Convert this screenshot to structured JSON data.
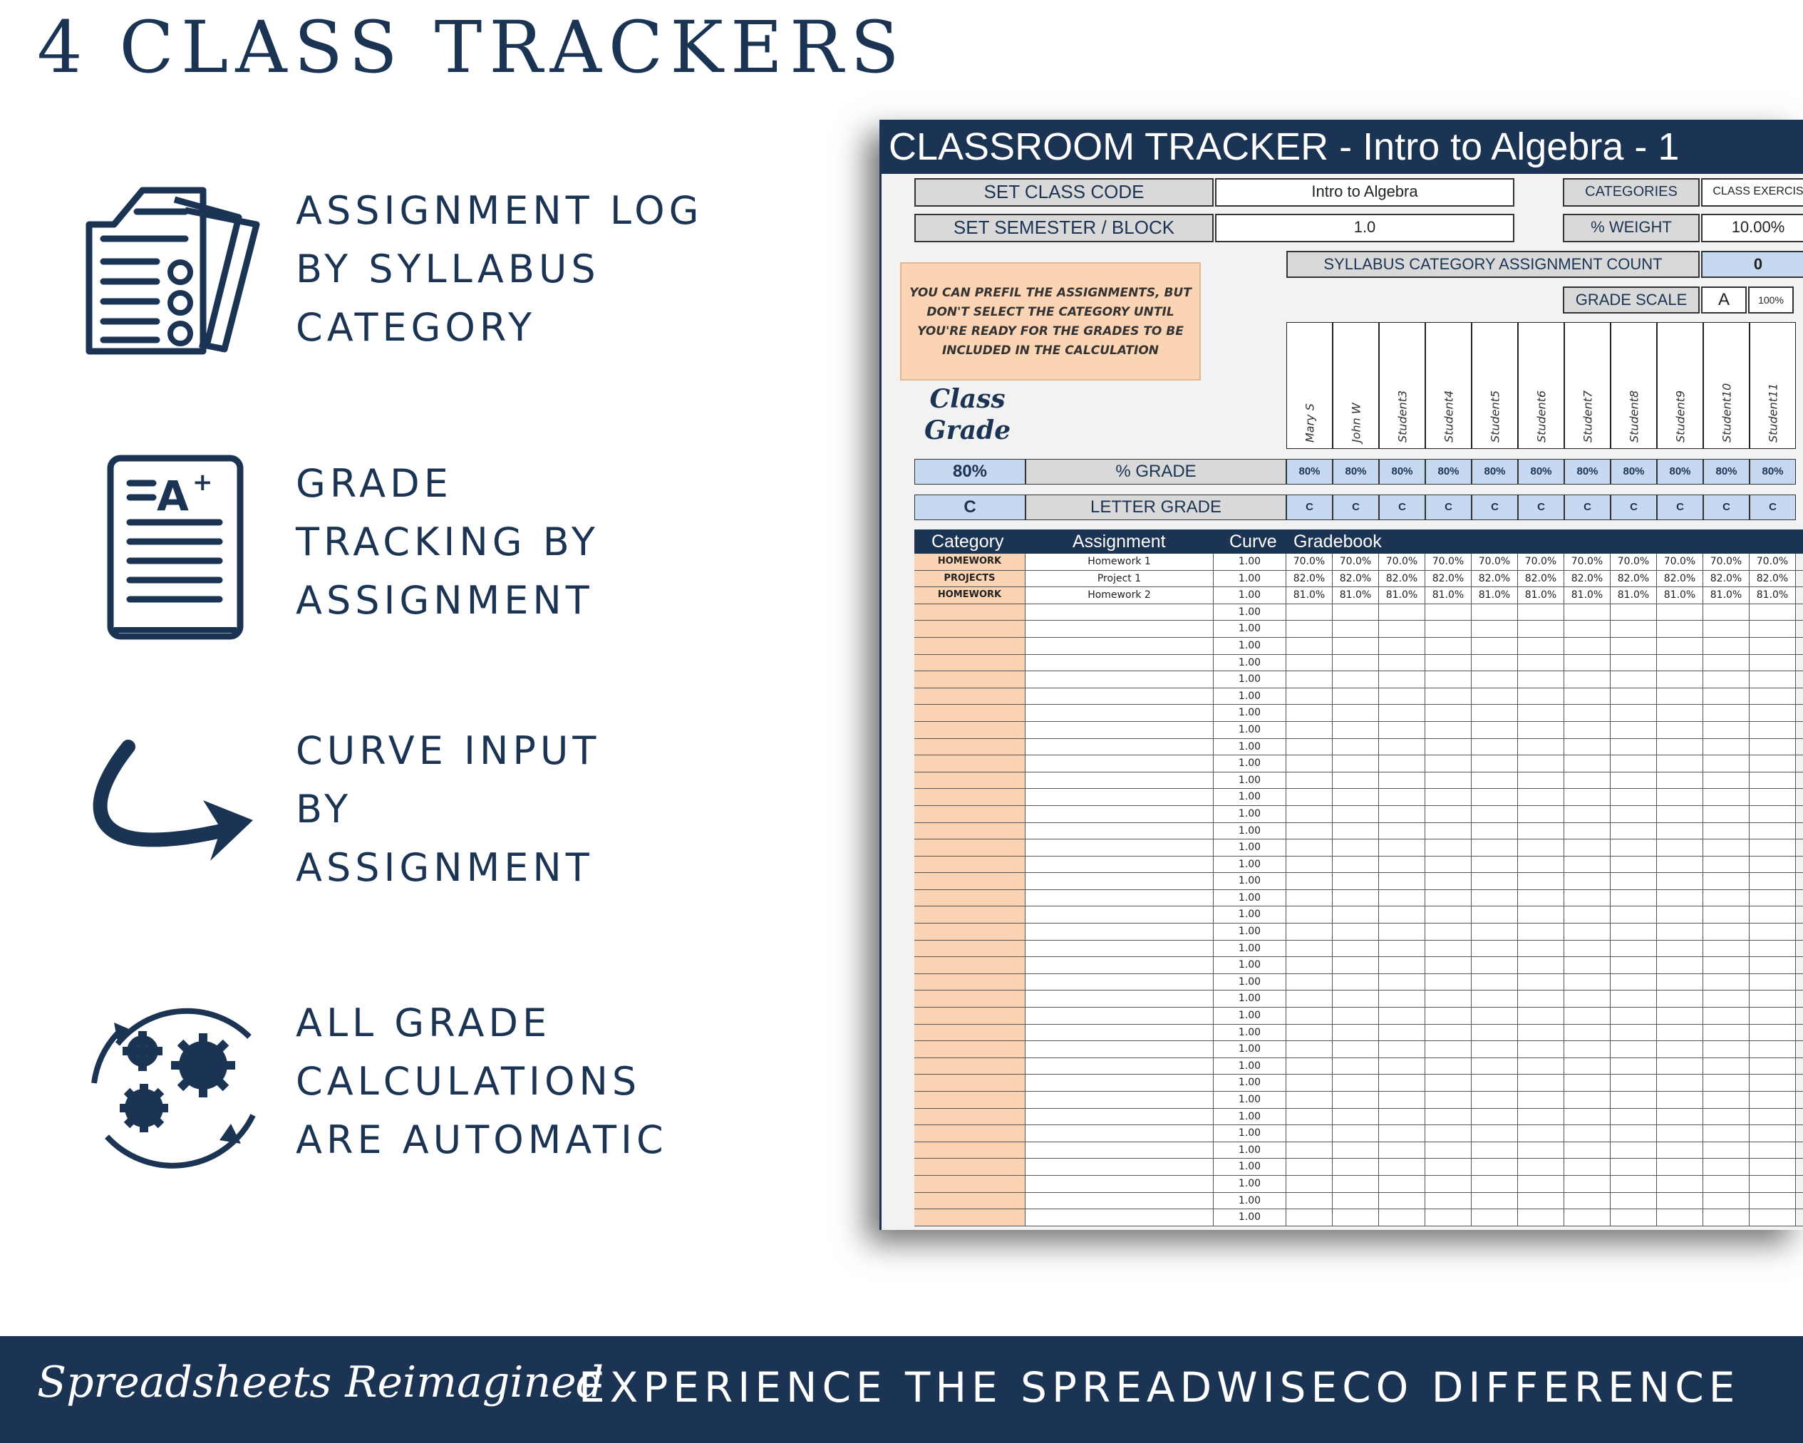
{
  "headline": "4 CLASS TRACKERS",
  "features": [
    {
      "icon": "document-list-icon",
      "lines": [
        "ASSIGNMENT LOG",
        "BY SYLLABUS",
        "CATEGORY"
      ]
    },
    {
      "icon": "graded-paper-icon",
      "lines": [
        "GRADE",
        "TRACKING BY",
        "ASSIGNMENT"
      ]
    },
    {
      "icon": "curved-arrow-icon",
      "lines": [
        "CURVE INPUT",
        "BY",
        "ASSIGNMENT"
      ]
    },
    {
      "icon": "gears-cycle-icon",
      "lines": [
        "ALL GRADE",
        "CALCULATIONS",
        "ARE AUTOMATIC"
      ]
    }
  ],
  "sheet": {
    "title": "CLASSROOM TRACKER - Intro to Algebra - 1",
    "set_class_code_label": "SET CLASS CODE",
    "class_code_value": "Intro to Algebra",
    "set_semester_label": "SET SEMESTER / BLOCK",
    "semester_value": "1.0",
    "categories_label": "CATEGORIES",
    "categories_value": "CLASS EXERCIS",
    "weight_label": "% WEIGHT",
    "weight_value": "10.00%",
    "syllabus_count_label": "SYLLABUS CATEGORY ASSIGNMENT COUNT",
    "syllabus_count_value": "0",
    "grade_scale_label": "GRADE SCALE",
    "grade_scale_letter": "A",
    "grade_scale_pct": "100%",
    "note_lines": [
      "YOU CAN PREFIL THE ASSIGNMENTS, BUT",
      "DON'T SELECT THE CATEGORY UNTIL",
      "YOU'RE READY FOR THE GRADES TO BE",
      "INCLUDED IN THE CALCULATION"
    ],
    "class_grade_lines": [
      "Class",
      "Grade"
    ],
    "class_pct": "80%",
    "pct_grade_label": "% GRADE",
    "class_letter": "C",
    "letter_grade_label": "LETTER GRADE",
    "students": [
      "Mary S",
      "John W",
      "Student3",
      "Student4",
      "Student5",
      "Student6",
      "Student7",
      "Student8",
      "Student9",
      "Student10",
      "Student11"
    ],
    "student_pct": [
      "80%",
      "80%",
      "80%",
      "80%",
      "80%",
      "80%",
      "80%",
      "80%",
      "80%",
      "80%",
      "80%"
    ],
    "student_letter": [
      "C",
      "C",
      "C",
      "C",
      "C",
      "C",
      "C",
      "C",
      "C",
      "C",
      "C"
    ],
    "gradebook_headers": {
      "category": "Category",
      "assignment": "Assignment",
      "curve": "Curve",
      "gradebook": "Gradebook"
    },
    "assignments": [
      {
        "category": "HOMEWORK",
        "assignment": "Homework 1",
        "curve": "1.00",
        "grades": [
          "70.0%",
          "70.0%",
          "70.0%",
          "70.0%",
          "70.0%",
          "70.0%",
          "70.0%",
          "70.0%",
          "70.0%",
          "70.0%",
          "70.0%"
        ]
      },
      {
        "category": "PROJECTS",
        "assignment": "Project 1",
        "curve": "1.00",
        "grades": [
          "82.0%",
          "82.0%",
          "82.0%",
          "82.0%",
          "82.0%",
          "82.0%",
          "82.0%",
          "82.0%",
          "82.0%",
          "82.0%",
          "82.0%"
        ]
      },
      {
        "category": "HOMEWORK",
        "assignment": "Homework 2",
        "curve": "1.00",
        "grades": [
          "81.0%",
          "81.0%",
          "81.0%",
          "81.0%",
          "81.0%",
          "81.0%",
          "81.0%",
          "81.0%",
          "81.0%",
          "81.0%",
          "81.0%"
        ]
      }
    ],
    "empty_curve_value": "1.00",
    "empty_row_count": 37
  },
  "footer": {
    "script_text": "Spreadsheets Reimagined",
    "slogan": "EXPERIENCE THE SPREADWISECO DIFFERENCE"
  }
}
